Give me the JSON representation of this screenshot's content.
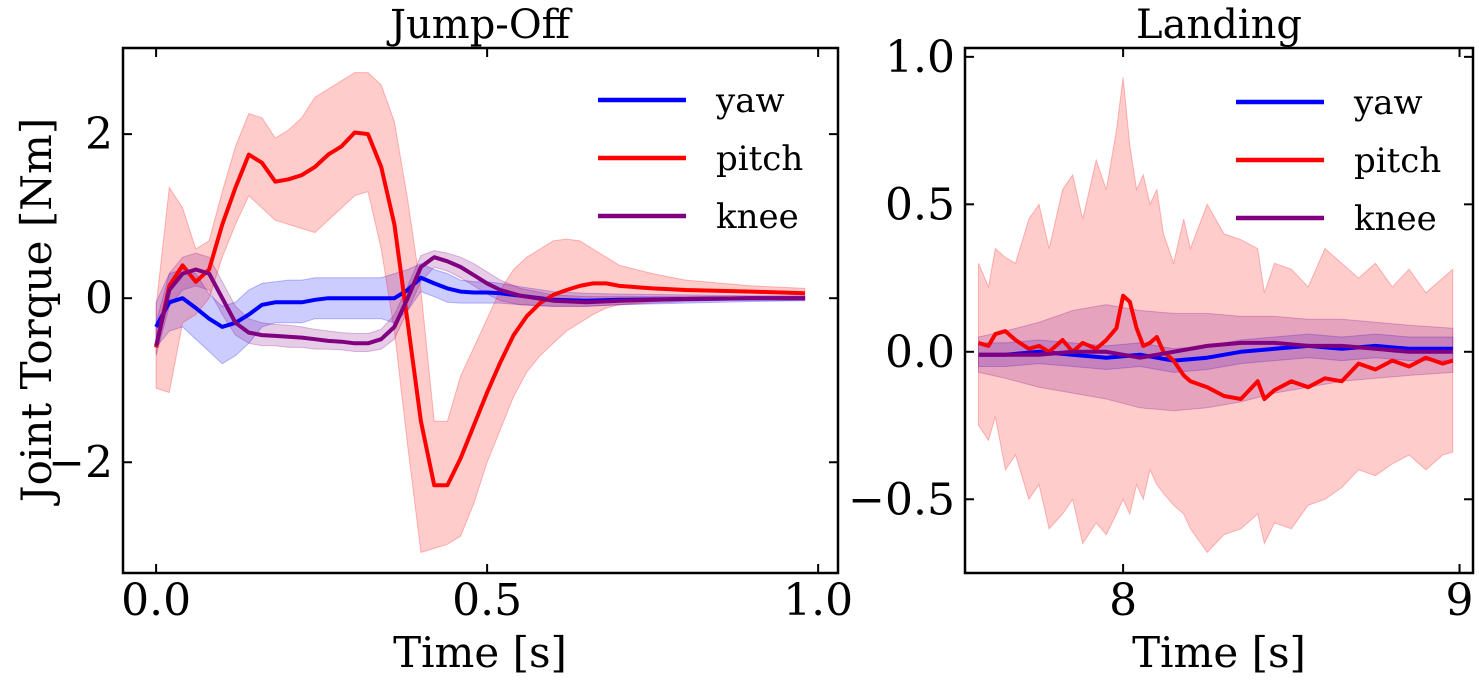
{
  "chart_data": [
    {
      "type": "line",
      "title": "Jump-Off",
      "xlabel": "Time [s]",
      "ylabel": "Joint Torque [Nm]",
      "xlim": [
        -0.05,
        1.03
      ],
      "ylim": [
        -3.35,
        3.05
      ],
      "xticks": [
        0.0,
        0.5,
        1.0
      ],
      "xtick_labels": [
        "0.0",
        "0.5",
        "1.0"
      ],
      "yticks": [
        -2,
        0,
        2
      ],
      "ytick_labels": [
        "−2",
        "0",
        "2"
      ],
      "legend": [
        "yaw",
        "pitch",
        "knee"
      ],
      "legend_position": "top-right",
      "series": [
        {
          "name": "yaw",
          "color": "#0000ff",
          "x": [
            0.0,
            0.02,
            0.04,
            0.06,
            0.08,
            0.1,
            0.12,
            0.14,
            0.16,
            0.18,
            0.2,
            0.22,
            0.24,
            0.26,
            0.28,
            0.3,
            0.32,
            0.34,
            0.36,
            0.38,
            0.4,
            0.42,
            0.44,
            0.46,
            0.48,
            0.5,
            0.52,
            0.55,
            0.6,
            0.65,
            0.7,
            0.8,
            0.9,
            0.98
          ],
          "y": [
            -0.35,
            -0.05,
            0.0,
            -0.12,
            -0.25,
            -0.35,
            -0.3,
            -0.2,
            -0.08,
            -0.05,
            -0.05,
            -0.05,
            -0.02,
            0.0,
            0.0,
            0.0,
            0.0,
            0.0,
            0.0,
            0.1,
            0.25,
            0.18,
            0.12,
            0.08,
            0.07,
            0.07,
            0.06,
            0.03,
            -0.02,
            -0.03,
            -0.02,
            -0.01,
            0.0,
            0.0
          ],
          "upper": [
            -0.05,
            0.3,
            0.35,
            0.3,
            0.05,
            -0.1,
            -0.05,
            0.1,
            0.18,
            0.2,
            0.22,
            0.22,
            0.25,
            0.25,
            0.25,
            0.25,
            0.25,
            0.25,
            0.3,
            0.35,
            0.42,
            0.35,
            0.3,
            0.22,
            0.2,
            0.2,
            0.18,
            0.14,
            0.08,
            0.06,
            0.05,
            0.04,
            0.03,
            0.03
          ],
          "lower": [
            -0.6,
            -0.4,
            -0.35,
            -0.5,
            -0.65,
            -0.8,
            -0.7,
            -0.55,
            -0.35,
            -0.3,
            -0.3,
            -0.3,
            -0.25,
            -0.25,
            -0.25,
            -0.25,
            -0.25,
            -0.25,
            -0.3,
            -0.15,
            0.08,
            0.02,
            -0.05,
            -0.06,
            -0.06,
            -0.06,
            -0.06,
            -0.08,
            -0.1,
            -0.1,
            -0.08,
            -0.06,
            -0.04,
            -0.03
          ]
        },
        {
          "name": "pitch",
          "color": "#ff0000",
          "x": [
            0.0,
            0.02,
            0.04,
            0.06,
            0.08,
            0.1,
            0.12,
            0.14,
            0.16,
            0.18,
            0.2,
            0.22,
            0.24,
            0.26,
            0.28,
            0.3,
            0.32,
            0.34,
            0.36,
            0.38,
            0.4,
            0.42,
            0.44,
            0.46,
            0.48,
            0.5,
            0.52,
            0.54,
            0.56,
            0.58,
            0.6,
            0.62,
            0.64,
            0.66,
            0.68,
            0.7,
            0.75,
            0.8,
            0.9,
            0.98
          ],
          "y": [
            -0.6,
            0.15,
            0.4,
            0.2,
            0.35,
            0.9,
            1.35,
            1.75,
            1.65,
            1.42,
            1.45,
            1.5,
            1.6,
            1.75,
            1.85,
            2.02,
            2.0,
            1.6,
            0.9,
            -0.3,
            -1.5,
            -2.28,
            -2.28,
            -1.95,
            -1.55,
            -1.15,
            -0.78,
            -0.45,
            -0.22,
            -0.06,
            0.04,
            0.1,
            0.15,
            0.18,
            0.18,
            0.15,
            0.12,
            0.1,
            0.08,
            0.06
          ],
          "upper": [
            -0.1,
            1.35,
            1.1,
            0.6,
            0.7,
            1.3,
            1.85,
            2.25,
            2.2,
            1.95,
            2.05,
            2.2,
            2.45,
            2.55,
            2.65,
            2.75,
            2.75,
            2.6,
            2.15,
            1.2,
            0.1,
            -1.5,
            -1.5,
            -0.95,
            -0.6,
            -0.25,
            0.1,
            0.35,
            0.5,
            0.6,
            0.7,
            0.72,
            0.7,
            0.6,
            0.5,
            0.4,
            0.3,
            0.22,
            0.15,
            0.12
          ],
          "lower": [
            -1.1,
            -1.15,
            -0.3,
            -0.2,
            0.0,
            0.5,
            0.9,
            1.25,
            1.1,
            0.95,
            0.9,
            0.85,
            0.8,
            0.95,
            1.1,
            1.25,
            1.3,
            0.6,
            -0.4,
            -1.8,
            -3.1,
            -3.05,
            -3.0,
            -2.9,
            -2.5,
            -2.0,
            -1.6,
            -1.2,
            -0.9,
            -0.7,
            -0.55,
            -0.4,
            -0.3,
            -0.2,
            -0.12,
            -0.08,
            -0.04,
            -0.02,
            0.0,
            0.0
          ]
        },
        {
          "name": "knee",
          "color": "#800080",
          "x": [
            0.0,
            0.02,
            0.04,
            0.06,
            0.08,
            0.1,
            0.12,
            0.14,
            0.16,
            0.18,
            0.2,
            0.22,
            0.24,
            0.26,
            0.28,
            0.3,
            0.32,
            0.34,
            0.36,
            0.38,
            0.4,
            0.42,
            0.44,
            0.46,
            0.48,
            0.5,
            0.52,
            0.55,
            0.6,
            0.65,
            0.7,
            0.8,
            0.9,
            0.98
          ],
          "y": [
            -0.58,
            0.1,
            0.3,
            0.35,
            0.3,
            0.0,
            -0.3,
            -0.42,
            -0.45,
            -0.46,
            -0.47,
            -0.48,
            -0.5,
            -0.52,
            -0.53,
            -0.55,
            -0.55,
            -0.5,
            -0.35,
            0.0,
            0.38,
            0.5,
            0.45,
            0.38,
            0.28,
            0.18,
            0.1,
            0.03,
            -0.03,
            -0.05,
            -0.03,
            -0.01,
            0.0,
            0.0
          ],
          "upper": [
            -0.3,
            0.3,
            0.5,
            0.55,
            0.5,
            0.2,
            -0.1,
            -0.25,
            -0.3,
            -0.32,
            -0.33,
            -0.35,
            -0.38,
            -0.4,
            -0.42,
            -0.43,
            -0.43,
            -0.38,
            -0.2,
            0.15,
            0.52,
            0.58,
            0.55,
            0.5,
            0.42,
            0.32,
            0.22,
            0.12,
            0.04,
            0.02,
            0.02,
            0.02,
            0.02,
            0.02
          ],
          "lower": [
            -0.7,
            -0.1,
            0.1,
            0.15,
            0.1,
            -0.2,
            -0.45,
            -0.55,
            -0.58,
            -0.58,
            -0.6,
            -0.6,
            -0.62,
            -0.62,
            -0.63,
            -0.65,
            -0.65,
            -0.62,
            -0.5,
            -0.15,
            0.2,
            0.38,
            0.33,
            0.25,
            0.15,
            0.05,
            -0.03,
            -0.08,
            -0.1,
            -0.1,
            -0.08,
            -0.04,
            -0.02,
            -0.02
          ]
        }
      ]
    },
    {
      "type": "line",
      "title": "Landing",
      "xlabel": "Time [s]",
      "ylabel": "",
      "xlim": [
        7.53,
        9.04
      ],
      "ylim": [
        -0.75,
        1.03
      ],
      "xticks": [
        8,
        9
      ],
      "xtick_labels": [
        "8",
        "9"
      ],
      "yticks": [
        -0.5,
        0.0,
        0.5,
        1.0
      ],
      "ytick_labels": [
        "−0.5",
        "0.0",
        "0.5",
        "1.0"
      ],
      "legend": [
        "yaw",
        "pitch",
        "knee"
      ],
      "legend_position": "top-right",
      "series": [
        {
          "name": "yaw",
          "color": "#0000ff",
          "x": [
            7.57,
            7.65,
            7.75,
            7.85,
            7.95,
            8.05,
            8.15,
            8.25,
            8.35,
            8.45,
            8.55,
            8.65,
            8.75,
            8.85,
            8.98
          ],
          "y": [
            -0.01,
            -0.01,
            0.0,
            -0.01,
            -0.02,
            -0.01,
            -0.03,
            -0.02,
            0.0,
            0.01,
            0.02,
            0.01,
            0.02,
            0.01,
            0.01
          ],
          "upper": [
            0.03,
            0.03,
            0.04,
            0.03,
            0.02,
            0.03,
            0.01,
            0.02,
            0.04,
            0.05,
            0.06,
            0.05,
            0.06,
            0.05,
            0.05
          ],
          "lower": [
            -0.05,
            -0.05,
            -0.04,
            -0.05,
            -0.06,
            -0.05,
            -0.07,
            -0.06,
            -0.04,
            -0.03,
            -0.02,
            -0.03,
            -0.02,
            -0.03,
            -0.03
          ]
        },
        {
          "name": "pitch",
          "color": "#ff0000",
          "x": [
            7.57,
            7.6,
            7.62,
            7.65,
            7.68,
            7.72,
            7.75,
            7.78,
            7.82,
            7.85,
            7.88,
            7.92,
            7.95,
            7.98,
            8.0,
            8.02,
            8.04,
            8.06,
            8.08,
            8.1,
            8.12,
            8.15,
            8.18,
            8.2,
            8.25,
            8.3,
            8.35,
            8.4,
            8.42,
            8.45,
            8.5,
            8.55,
            8.6,
            8.65,
            8.7,
            8.75,
            8.8,
            8.85,
            8.9,
            8.95,
            8.98
          ],
          "y": [
            0.03,
            0.02,
            0.06,
            0.07,
            0.04,
            0.01,
            0.02,
            0.0,
            0.04,
            0.0,
            0.03,
            0.01,
            0.04,
            0.08,
            0.19,
            0.17,
            0.08,
            0.02,
            0.03,
            0.05,
            0.0,
            -0.03,
            -0.08,
            -0.1,
            -0.12,
            -0.15,
            -0.16,
            -0.1,
            -0.16,
            -0.13,
            -0.1,
            -0.12,
            -0.09,
            -0.1,
            -0.04,
            -0.06,
            -0.03,
            -0.05,
            -0.02,
            -0.04,
            -0.03
          ],
          "upper": [
            0.3,
            0.22,
            0.35,
            0.32,
            0.3,
            0.45,
            0.5,
            0.35,
            0.55,
            0.6,
            0.45,
            0.65,
            0.55,
            0.75,
            0.93,
            0.7,
            0.55,
            0.6,
            0.5,
            0.55,
            0.4,
            0.3,
            0.45,
            0.35,
            0.5,
            0.4,
            0.38,
            0.35,
            0.2,
            0.3,
            0.28,
            0.22,
            0.35,
            0.3,
            0.25,
            0.3,
            0.22,
            0.28,
            0.2,
            0.25,
            0.28
          ],
          "lower": [
            -0.25,
            -0.3,
            -0.22,
            -0.4,
            -0.35,
            -0.5,
            -0.45,
            -0.6,
            -0.55,
            -0.5,
            -0.65,
            -0.58,
            -0.62,
            -0.55,
            -0.5,
            -0.55,
            -0.45,
            -0.5,
            -0.4,
            -0.45,
            -0.48,
            -0.52,
            -0.55,
            -0.6,
            -0.68,
            -0.62,
            -0.6,
            -0.55,
            -0.65,
            -0.58,
            -0.6,
            -0.52,
            -0.5,
            -0.46,
            -0.4,
            -0.42,
            -0.38,
            -0.35,
            -0.4,
            -0.35,
            -0.34
          ]
        },
        {
          "name": "knee",
          "color": "#800080",
          "x": [
            7.57,
            7.65,
            7.75,
            7.85,
            7.95,
            8.05,
            8.15,
            8.25,
            8.35,
            8.45,
            8.55,
            8.65,
            8.75,
            8.85,
            8.98
          ],
          "y": [
            -0.01,
            -0.01,
            -0.01,
            0.0,
            0.0,
            -0.02,
            0.0,
            0.02,
            0.03,
            0.03,
            0.02,
            0.02,
            0.01,
            0.0,
            0.0
          ],
          "upper": [
            0.05,
            0.07,
            0.1,
            0.14,
            0.16,
            0.14,
            0.13,
            0.13,
            0.12,
            0.12,
            0.11,
            0.11,
            0.1,
            0.09,
            0.08
          ],
          "lower": [
            -0.07,
            -0.09,
            -0.12,
            -0.14,
            -0.16,
            -0.19,
            -0.2,
            -0.19,
            -0.17,
            -0.14,
            -0.12,
            -0.1,
            -0.09,
            -0.08,
            -0.07
          ]
        }
      ]
    }
  ]
}
